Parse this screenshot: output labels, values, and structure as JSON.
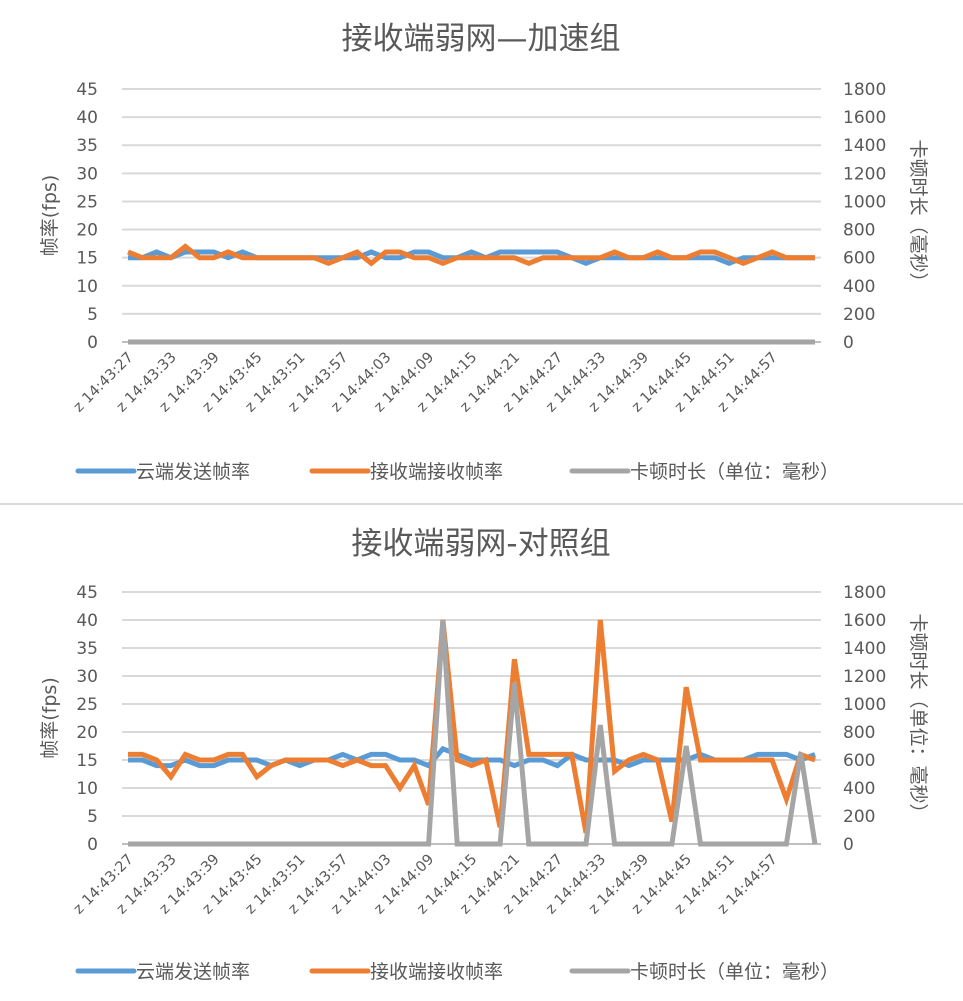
{
  "charts_meta": [
    {
      "title": "接收端弱网—加速组",
      "y_left_label": "帧率(fps)",
      "y_right_label": "卡顿时长（毫秒）"
    },
    {
      "title": "接收端弱网-对照组",
      "y_left_label": "帧率(fps)",
      "y_right_label": "卡顿时长（单位：毫秒）"
    }
  ],
  "legend": [
    {
      "label": "云端发送帧率",
      "color": "#5b9bd5"
    },
    {
      "label": "接收端接收帧率",
      "color": "#ed7d31"
    },
    {
      "label": "卡顿时长（单位：毫秒）",
      "color": "#a5a5a5"
    }
  ],
  "axes": {
    "left_ticks": [
      "0",
      "5",
      "10",
      "15",
      "20",
      "25",
      "30",
      "35",
      "40",
      "45"
    ],
    "right_ticks": [
      "0",
      "200",
      "400",
      "600",
      "800",
      "1000",
      "1200",
      "1400",
      "1600",
      "1800"
    ],
    "x_tick_labels": [
      "z 14:43:27",
      "z 14:43:33",
      "z 14:43:39",
      "z 14:43:45",
      "z 14:43:51",
      "z 14:43:57",
      "z 14:44:03",
      "z 14:44:09",
      "z 14:44:15",
      "z 14:44:21",
      "z 14:44:27",
      "z 14:44:33",
      "z 14:44:39",
      "z 14:44:45",
      "z 14:44:51",
      "z 14:44:57"
    ]
  },
  "chart_data": [
    {
      "type": "line",
      "title": "接收端弱网—加速组",
      "xlabel": "",
      "ylabel": "帧率(fps)",
      "y2label": "卡顿时长（毫秒）",
      "ylim": [
        0,
        45
      ],
      "y2lim": [
        0,
        1800
      ],
      "grid": true,
      "legend_position": "bottom",
      "categories": [
        "z 14:43:27",
        "z 14:43:33",
        "z 14:43:39",
        "z 14:43:45",
        "z 14:43:51",
        "z 14:43:57",
        "z 14:44:03",
        "z 14:44:09",
        "z 14:44:15",
        "z 14:44:21",
        "z 14:44:27",
        "z 14:44:33",
        "z 14:44:39",
        "z 14:44:45",
        "z 14:44:51",
        "z 14:44:57"
      ],
      "series": [
        {
          "name": "云端发送帧率",
          "axis": "left",
          "color": "#5b9bd5",
          "values": [
            15,
            15,
            16,
            15,
            16,
            16,
            16,
            15,
            16,
            15,
            15,
            15,
            15,
            15,
            15,
            15,
            15,
            16,
            15,
            15,
            16,
            16,
            15,
            15,
            16,
            15,
            16,
            16,
            16,
            16,
            16,
            15,
            14,
            15,
            15,
            15,
            15,
            15,
            15,
            15,
            15,
            15,
            14,
            15,
            15,
            15,
            15,
            15,
            15
          ]
        },
        {
          "name": "接收端接收帧率",
          "axis": "left",
          "color": "#ed7d31",
          "values": [
            16,
            15,
            15,
            15,
            17,
            15,
            15,
            16,
            15,
            15,
            15,
            15,
            15,
            15,
            14,
            15,
            16,
            14,
            16,
            16,
            15,
            15,
            14,
            15,
            15,
            15,
            15,
            15,
            14,
            15,
            15,
            15,
            15,
            15,
            16,
            15,
            15,
            16,
            15,
            15,
            16,
            16,
            15,
            14,
            15,
            16,
            15,
            15,
            15
          ]
        },
        {
          "name": "卡顿时长（单位：毫秒）",
          "axis": "right",
          "color": "#a5a5a5",
          "values": [
            0,
            0,
            0,
            0,
            0,
            0,
            0,
            0,
            0,
            0,
            0,
            0,
            0,
            0,
            0,
            0,
            0,
            0,
            0,
            0,
            0,
            0,
            0,
            0,
            0,
            0,
            0,
            0,
            0,
            0,
            0,
            0,
            0,
            0,
            0,
            0,
            0,
            0,
            0,
            0,
            0,
            0,
            0,
            0,
            0,
            0,
            0,
            0,
            0
          ]
        }
      ]
    },
    {
      "type": "line",
      "title": "接收端弱网-对照组",
      "xlabel": "",
      "ylabel": "帧率(fps)",
      "y2label": "卡顿时长（单位：毫秒）",
      "ylim": [
        0,
        45
      ],
      "y2lim": [
        0,
        1800
      ],
      "grid": true,
      "legend_position": "bottom",
      "categories": [
        "z 14:43:27",
        "z 14:43:33",
        "z 14:43:39",
        "z 14:43:45",
        "z 14:43:51",
        "z 14:43:57",
        "z 14:44:03",
        "z 14:44:09",
        "z 14:44:15",
        "z 14:44:21",
        "z 14:44:27",
        "z 14:44:33",
        "z 14:44:39",
        "z 14:44:45",
        "z 14:44:51",
        "z 14:44:57"
      ],
      "series": [
        {
          "name": "云端发送帧率",
          "axis": "left",
          "color": "#5b9bd5",
          "values": [
            15,
            15,
            14,
            14,
            15,
            14,
            14,
            15,
            15,
            15,
            14,
            15,
            14,
            15,
            15,
            16,
            15,
            16,
            16,
            15,
            15,
            14,
            17,
            16,
            15,
            15,
            15,
            14,
            15,
            15,
            14,
            16,
            15,
            15,
            15,
            14,
            15,
            15,
            15,
            15,
            16,
            15,
            15,
            15,
            16,
            16,
            16,
            15,
            16
          ]
        },
        {
          "name": "接收端接收帧率",
          "axis": "left",
          "color": "#ed7d31",
          "values": [
            16,
            16,
            15,
            12,
            16,
            15,
            15,
            16,
            16,
            12,
            14,
            15,
            15,
            15,
            15,
            14,
            15,
            14,
            14,
            10,
            14,
            7,
            40,
            15,
            14,
            15,
            3,
            33,
            16,
            16,
            16,
            16,
            2,
            40,
            13,
            15,
            16,
            15,
            4,
            28,
            15,
            15,
            15,
            15,
            15,
            15,
            8,
            16,
            15
          ]
        },
        {
          "name": "卡顿时长（单位：毫秒）",
          "axis": "right",
          "color": "#a5a5a5",
          "values": [
            0,
            0,
            0,
            0,
            0,
            0,
            0,
            0,
            0,
            0,
            0,
            0,
            0,
            0,
            0,
            0,
            0,
            0,
            0,
            0,
            0,
            0,
            1600,
            0,
            0,
            0,
            0,
            1150,
            0,
            0,
            0,
            0,
            0,
            850,
            0,
            0,
            0,
            0,
            0,
            700,
            0,
            0,
            0,
            0,
            0,
            0,
            0,
            650,
            0
          ]
        }
      ]
    }
  ]
}
